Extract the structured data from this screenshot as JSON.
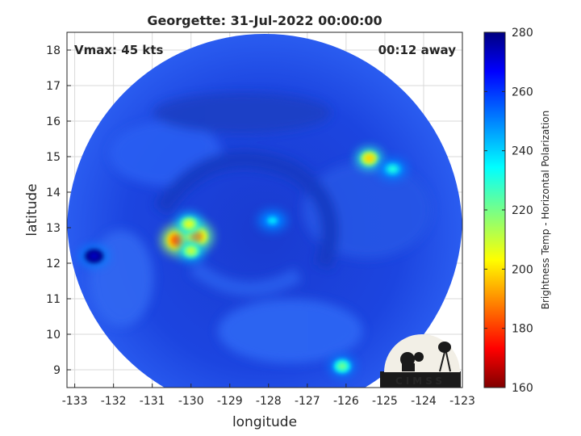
{
  "chart_data": {
    "type": "heatmap",
    "title": "Georgette: 31-Jul-2022 00:00:00",
    "xlabel": "longitude",
    "ylabel": "latitude",
    "xlim": [
      -133.2,
      -123
    ],
    "ylim": [
      8.5,
      18.5
    ],
    "x_ticks": [
      "-133",
      "-132",
      "-131",
      "-130",
      "-129",
      "-128",
      "-127",
      "-126",
      "-125",
      "-124",
      "-123"
    ],
    "y_ticks": [
      "9",
      "10",
      "11",
      "12",
      "13",
      "14",
      "15",
      "16",
      "17",
      "18"
    ],
    "grid": true,
    "annotations": {
      "vmax": "Vmax: 45 kts",
      "time_away": "00:12 away"
    },
    "colorbar": {
      "label": "Brightness Temp - Horizontal Polarization",
      "range": [
        160,
        280
      ],
      "ticks": [
        "160",
        "180",
        "200",
        "220",
        "240",
        "260",
        "280"
      ],
      "colormap": "jet"
    },
    "swath": {
      "center": [
        -128.1,
        13.3
      ],
      "background_value": 262
    },
    "features": [
      {
        "name": "convective cluster",
        "lon": -130.35,
        "lat": 12.65,
        "value": 185
      },
      {
        "name": "convective cluster",
        "lon": -129.85,
        "lat": 12.75,
        "value": 192
      },
      {
        "name": "convective cluster",
        "lon": -130.05,
        "lat": 13.1,
        "value": 208
      },
      {
        "name": "convective cluster",
        "lon": -130.0,
        "lat": 12.35,
        "value": 212
      },
      {
        "name": "rainband",
        "lon": -125.4,
        "lat": 14.95,
        "value": 200
      },
      {
        "name": "rainband",
        "lon": -124.8,
        "lat": 14.65,
        "value": 232
      },
      {
        "name": "eye region",
        "lon": -127.9,
        "lat": 13.2,
        "value": 238
      },
      {
        "name": "southern cell",
        "lon": -126.1,
        "lat": 9.1,
        "value": 222
      },
      {
        "name": "cold region",
        "lon": -132.5,
        "lat": 12.2,
        "value": 272
      }
    ],
    "logo": "CIMSS"
  }
}
